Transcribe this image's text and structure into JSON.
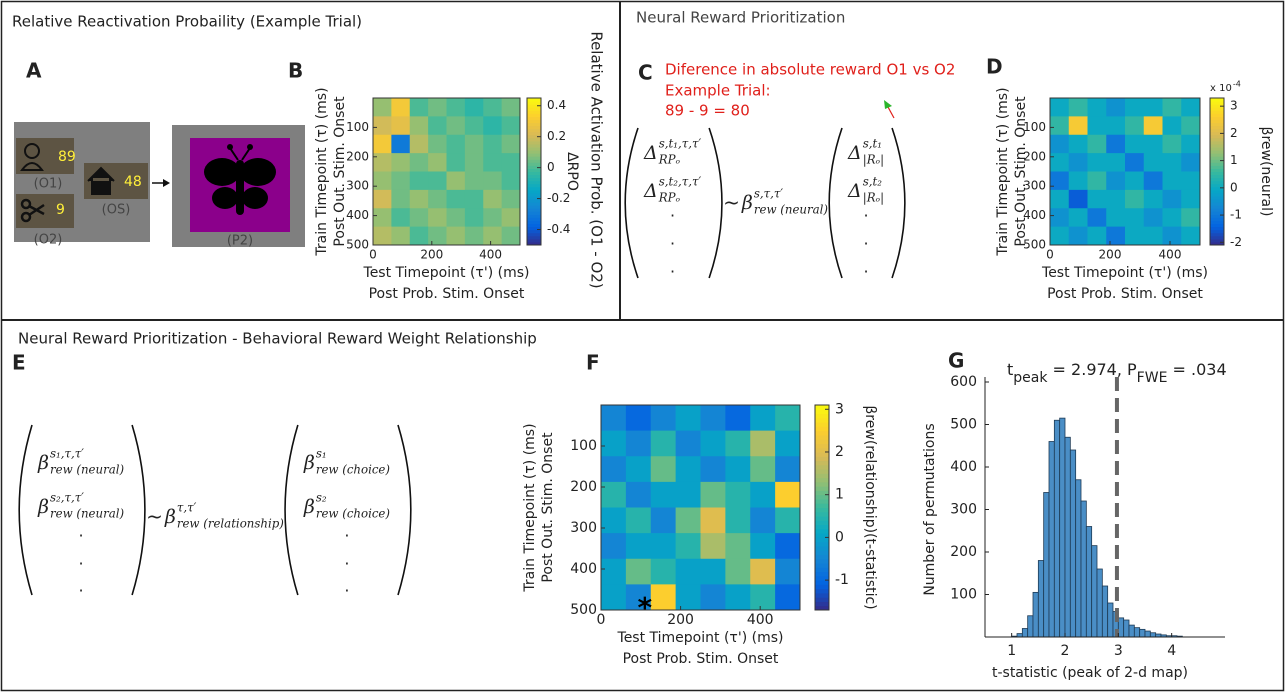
{
  "titles": {
    "top_left": "Relative Reactivation Probaility (Example Trial)",
    "top_right": "Neural Reward Prioritization",
    "bottom": "Neural Reward Prioritization - Behavioral Reward Weight Relationship"
  },
  "letters": [
    "A",
    "B",
    "C",
    "D",
    "E",
    "F",
    "G"
  ],
  "task": {
    "o1_value": "89",
    "o1_label": "(O1)",
    "o2_value": "9",
    "o2_label": "(O2)",
    "os_value": "48",
    "os_label": "(OS)",
    "p2_label": "(P2)"
  },
  "annotation_c": [
    "Diference in absolute reward O1 vs O2",
    "Example Trial:",
    "89 - 9 = 80"
  ],
  "equation_c": {
    "left": [
      {
        "base": "Δ",
        "sup": "s,t₁,τ,τ′",
        "sub": "RPₒ"
      },
      {
        "base": "Δ",
        "sup": "s,t₂,τ,τ′",
        "sub": "RPₒ"
      }
    ],
    "operator": "~",
    "coefficient": {
      "base": "β",
      "sup": "s,τ,τ′",
      "sub": "rew (neural)"
    },
    "right": [
      {
        "base": "Δ",
        "sup": "s,t₁",
        "sub": "|Rₒ|"
      },
      {
        "base": "Δ",
        "sup": "s,t₂",
        "sub": "|Rₒ|"
      }
    ],
    "dot": "."
  },
  "equation_e": {
    "left": [
      {
        "base": "β",
        "sup": "s₁,τ,τ′",
        "sub": "rew (neural)"
      },
      {
        "base": "β",
        "sup": "s₂,τ,τ′",
        "sub": "rew (neural)"
      }
    ],
    "operator": "~",
    "coefficient": {
      "base": "β",
      "sup": "τ,τ′",
      "sub": "rew (relationship)"
    },
    "right": [
      {
        "base": "β",
        "sup": "s₁",
        "sub": "rew (choice)"
      },
      {
        "base": "β",
        "sup": "s₂",
        "sub": "rew (choice)"
      }
    ],
    "dot": "."
  },
  "chart_data": [
    {
      "type": "heatmap",
      "side_title": "Relative Activation Prob. (O1 - O2)",
      "xlabel": [
        "Test Timepoint (τ') (ms)",
        "Post Prob. Stim. Onset"
      ],
      "ylabel": [
        "Train Timepoint (τ) (ms)",
        "Post Out. Stim. Onset"
      ],
      "xlim": [
        0,
        500
      ],
      "xticks": [
        0,
        200,
        400
      ],
      "ylim": [
        0,
        500
      ],
      "yticks": [
        100,
        200,
        300,
        400,
        500
      ],
      "y_reversed": true,
      "colormap": "parula",
      "clim": [
        -0.5,
        0.45
      ],
      "cticks": [
        -0.4,
        -0.2,
        0,
        0.2,
        0.4
      ],
      "clabel": "ΔRPO",
      "z": [
        [
          0.1,
          0.3,
          0.0,
          0.05,
          0.0,
          -0.05,
          0.0,
          0.05
        ],
        [
          0.2,
          0.25,
          0.1,
          0.0,
          0.05,
          0.0,
          -0.05,
          0.0
        ],
        [
          0.3,
          -0.3,
          0.15,
          0.05,
          0.0,
          0.05,
          0.0,
          0.05
        ],
        [
          0.15,
          0.1,
          0.05,
          0.1,
          0.0,
          0.05,
          0.0,
          0.0
        ],
        [
          0.1,
          0.05,
          0.0,
          0.0,
          0.1,
          0.05,
          0.05,
          0.0
        ],
        [
          0.2,
          0.05,
          0.1,
          0.05,
          0.0,
          0.0,
          0.1,
          0.05
        ],
        [
          0.1,
          0.0,
          0.05,
          0.1,
          0.05,
          0.0,
          0.05,
          0.1
        ],
        [
          0.15,
          0.1,
          0.0,
          0.05,
          0.1,
          0.05,
          0.1,
          0.05
        ]
      ]
    },
    {
      "type": "heatmap",
      "xlabel": [
        "Test Timepoint (τ') (ms)",
        "Post Prob. Stim. Onset"
      ],
      "ylabel": [
        "Train Timepoint (τ) (ms)",
        "Post Out. Stim. Onset"
      ],
      "xlim": [
        0,
        500
      ],
      "xticks": [
        0,
        200,
        400
      ],
      "ylim": [
        0,
        500
      ],
      "yticks": [
        100,
        200,
        300,
        400,
        500
      ],
      "y_reversed": true,
      "colormap": "parula",
      "clim": [
        -2.1,
        3.3
      ],
      "cticks": [
        -2,
        -1,
        0,
        1,
        2,
        3
      ],
      "clabel": "βrew(neural)",
      "scale_note": {
        "base": "x 10",
        "exponent": "-4"
      },
      "z": [
        [
          0,
          0.5,
          0,
          -0.5,
          0,
          0,
          0.5,
          0
        ],
        [
          0.5,
          2.5,
          0,
          0,
          0.5,
          2.5,
          0,
          0.5
        ],
        [
          -0.5,
          0,
          0.5,
          -1,
          0,
          0,
          0.5,
          0
        ],
        [
          0,
          -0.5,
          0,
          0,
          -1,
          0,
          0,
          -0.5
        ],
        [
          -1,
          0,
          0.5,
          -0.5,
          0,
          -1,
          0,
          0
        ],
        [
          0,
          -1.5,
          0,
          0,
          0.5,
          0,
          -0.5,
          0
        ],
        [
          -0.5,
          0,
          -1,
          0,
          0,
          -0.5,
          0,
          0.5
        ],
        [
          0,
          -0.5,
          0,
          -1,
          0,
          0,
          -0.5,
          0
        ]
      ]
    },
    {
      "type": "heatmap",
      "xlabel": [
        "Test Timepoint (τ') (ms)",
        "Post Prob. Stim. Onset"
      ],
      "ylabel": [
        "Train Timepoint (τ) (ms)",
        "Post Out. Stim. Onset"
      ],
      "xlim": [
        0,
        500
      ],
      "xticks": [
        0,
        200,
        400
      ],
      "ylim": [
        0,
        500
      ],
      "yticks": [
        100,
        200,
        300,
        400,
        500
      ],
      "y_reversed": true,
      "colormap": "parula",
      "clim": [
        -1.7,
        3.1
      ],
      "cticks": [
        -1,
        0,
        1,
        2,
        3
      ],
      "clabel": "βrew(relationship)(t-statistic)",
      "marker": {
        "x": 110,
        "y": 485,
        "label": "*"
      },
      "z": [
        [
          -0.5,
          -1,
          -0.5,
          0,
          -0.5,
          -1,
          0,
          0.5
        ],
        [
          0,
          -0.5,
          0.5,
          -0.5,
          0,
          0.5,
          1.5,
          0
        ],
        [
          -0.5,
          0,
          1,
          0,
          -0.5,
          0,
          1,
          -0.5
        ],
        [
          0.5,
          -0.5,
          0,
          0,
          1,
          0.5,
          0,
          2.5
        ],
        [
          0,
          0.5,
          -0.5,
          1,
          2,
          0.5,
          -0.5,
          0.5
        ],
        [
          -0.5,
          0,
          0,
          0.5,
          1.5,
          1,
          0,
          -1
        ],
        [
          0,
          1,
          0.5,
          0,
          0,
          1,
          2,
          -0.5
        ],
        [
          0,
          -0.5,
          2.5,
          0,
          -0.5,
          0,
          0.5,
          -1
        ]
      ]
    },
    {
      "type": "histogram",
      "title": {
        "t": "t",
        "t_sub": "peak",
        "mid": " = 2.974, P",
        "p_sub": "FWE",
        "end": " = .034"
      },
      "xlabel": "t-statistic (peak of 2-d map)",
      "ylabel": "Number of permutations",
      "color": "#4a8ec6",
      "bins": [
        1.0,
        1.1,
        1.2,
        1.3,
        1.4,
        1.5,
        1.6,
        1.7,
        1.8,
        1.9,
        2.0,
        2.1,
        2.2,
        2.3,
        2.4,
        2.5,
        2.6,
        2.7,
        2.8,
        2.9,
        3.0,
        3.1,
        3.2,
        3.3,
        3.4,
        3.5,
        3.6,
        3.7,
        3.8,
        3.9,
        4.0,
        4.1,
        4.2
      ],
      "values": [
        2,
        8,
        20,
        50,
        105,
        180,
        340,
        460,
        510,
        515,
        470,
        440,
        370,
        320,
        260,
        215,
        160,
        120,
        80,
        60,
        45,
        40,
        28,
        22,
        18,
        14,
        10,
        7,
        5,
        3,
        3,
        2
      ],
      "xlim": [
        0.5,
        5.0
      ],
      "xticks": [
        1,
        2,
        3,
        4
      ],
      "ylim": [
        0,
        600
      ],
      "yticks": [
        100,
        200,
        300,
        400,
        500,
        600
      ],
      "reference_line": {
        "x": 2.974,
        "style": "dashed"
      }
    }
  ]
}
